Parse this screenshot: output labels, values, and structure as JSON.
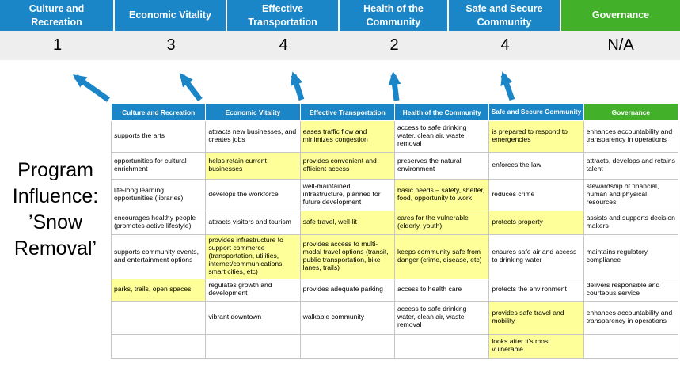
{
  "colors": {
    "blue": "#1a86c7",
    "green": "#43b02a",
    "yellow": "#ffff99",
    "scorebg": "#eeeeee",
    "border": "#c6c6c6"
  },
  "title": {
    "lines": [
      "Program",
      "Influence:",
      "’Snow",
      "Removal’"
    ]
  },
  "pillars": [
    {
      "label": "Culture and Recreation",
      "score": "1",
      "theme": "blue"
    },
    {
      "label": "Economic Vitality",
      "score": "3",
      "theme": "blue"
    },
    {
      "label": "Effective Transportation",
      "score": "4",
      "theme": "blue"
    },
    {
      "label": "Health of the Community",
      "score": "2",
      "theme": "blue"
    },
    {
      "label": "Safe and Secure Community",
      "score": "4",
      "theme": "blue"
    },
    {
      "label": "Governance",
      "score": "N/A",
      "theme": "green"
    }
  ],
  "matrix": {
    "headers": [
      "Culture and Recreation",
      "Economic Vitality",
      "Effective Transportation",
      "Health of the Community",
      "Safe and Secure Community",
      "Governance"
    ],
    "rows": [
      [
        {
          "text": "supports the arts",
          "hl": false
        },
        {
          "text": "attracts new businesses, and creates jobs",
          "hl": false
        },
        {
          "text": "eases traffic flow and minimizes congestion",
          "hl": true
        },
        {
          "text": "access to safe drinking water, clean air, waste removal",
          "hl": false
        },
        {
          "text": "is prepared to respond to emergencies",
          "hl": true
        },
        {
          "text": "enhances accountability and transparency in operations",
          "hl": false
        }
      ],
      [
        {
          "text": "opportunities for cultural enrichment",
          "hl": false
        },
        {
          "text": "helps retain current businesses",
          "hl": true
        },
        {
          "text": "provides convenient and efficient access",
          "hl": true
        },
        {
          "text": "preserves the natural environment",
          "hl": false
        },
        {
          "text": "enforces the law",
          "hl": false
        },
        {
          "text": "attracts, develops and retains talent",
          "hl": false
        }
      ],
      [
        {
          "text": "life-long learning opportunities (libraries)",
          "hl": false
        },
        {
          "text": "develops the workforce",
          "hl": false
        },
        {
          "text": "well-maintained infrastructure, planned for future development",
          "hl": false
        },
        {
          "text": "basic needs – safety, shelter, food, opportunity to work",
          "hl": true
        },
        {
          "text": "reduces crime",
          "hl": false
        },
        {
          "text": "stewardship of financial, human and physical resources",
          "hl": false
        }
      ],
      [
        {
          "text": "encourages healthy people (promotes active lifestyle)",
          "hl": false
        },
        {
          "text": "attracts visitors and tourism",
          "hl": false
        },
        {
          "text": "safe travel, well-lit",
          "hl": true
        },
        {
          "text": "cares for the vulnerable (elderly, youth)",
          "hl": true
        },
        {
          "text": "protects property",
          "hl": true
        },
        {
          "text": "assists and supports decision makers",
          "hl": false
        }
      ],
      [
        {
          "text": "supports community events, and entertainment options",
          "hl": false
        },
        {
          "text": "provides infrastructure to support commerce (transportation, utilities, internet/communications, smart cities, etc)",
          "hl": true
        },
        {
          "text": "provides access to multi-modal travel options (transit, public transportation, bike lanes, trails)",
          "hl": true
        },
        {
          "text": "keeps community safe from danger (crime, disease, etc)",
          "hl": true
        },
        {
          "text": "ensures safe air and access to drinking water",
          "hl": false
        },
        {
          "text": "maintains regulatory compliance",
          "hl": false
        }
      ],
      [
        {
          "text": "parks, trails, open spaces",
          "hl": true
        },
        {
          "text": "regulates growth and development",
          "hl": false
        },
        {
          "text": "provides adequate parking",
          "hl": false
        },
        {
          "text": "access to health care",
          "hl": false
        },
        {
          "text": "protects the environment",
          "hl": false
        },
        {
          "text": "delivers responsible and courteous service",
          "hl": false
        }
      ],
      [
        {
          "text": "",
          "hl": false
        },
        {
          "text": "vibrant downtown",
          "hl": false
        },
        {
          "text": "walkable community",
          "hl": false
        },
        {
          "text": "access to safe drinking water, clean air, waste removal",
          "hl": false
        },
        {
          "text": "provides safe travel and mobility",
          "hl": true
        },
        {
          "text": "enhances accountability and transparency in operations",
          "hl": false
        }
      ],
      [
        {
          "text": "",
          "hl": false
        },
        {
          "text": "",
          "hl": false
        },
        {
          "text": "",
          "hl": false
        },
        {
          "text": "",
          "hl": false
        },
        {
          "text": "looks after it's most vulnerable",
          "hl": true
        },
        {
          "text": "",
          "hl": false
        }
      ]
    ]
  }
}
